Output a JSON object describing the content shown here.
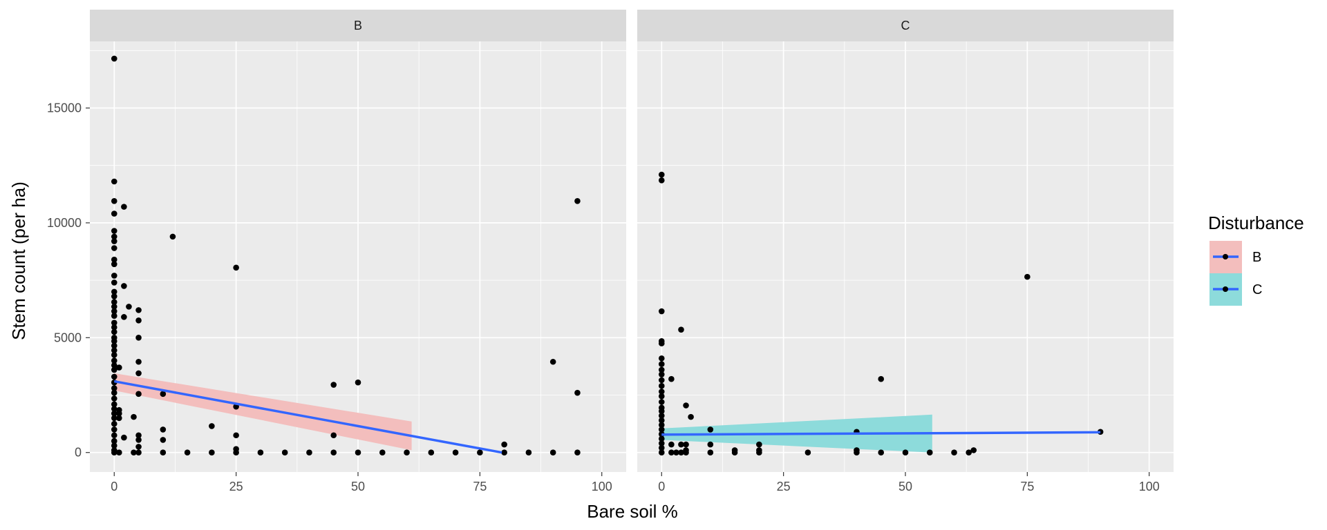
{
  "chart_data": {
    "type": "scatter",
    "xlabel": "Bare soil %",
    "ylabel": "Stem count (per ha)",
    "xlim": [
      -5,
      105
    ],
    "ylim": [
      -850,
      17900
    ],
    "x_ticks": [
      0,
      25,
      50,
      75,
      100
    ],
    "y_ticks": [
      0,
      5000,
      10000,
      15000
    ],
    "x_tick_labels": [
      "0",
      "25",
      "50",
      "75",
      "100"
    ],
    "y_tick_labels": [
      "0",
      "5000",
      "10000",
      "15000"
    ],
    "grid": true,
    "legend": {
      "title": "Disturbance",
      "placement": "right",
      "entries": [
        {
          "label": "B",
          "fill": "#F3BEBD"
        },
        {
          "label": "C",
          "fill": "#8DDBDB"
        }
      ]
    },
    "colors": {
      "panel_bg": "#EBEBEB",
      "strip_bg": "#D9D9D9",
      "grid": "#FFFFFF",
      "points": "#000000",
      "line": "#3366FF"
    },
    "panels": [
      {
        "strip": "B",
        "ribbon_fill": "#F3BEBD",
        "points": [
          [
            0,
            17150
          ],
          [
            0,
            11800
          ],
          [
            0,
            10950
          ],
          [
            0,
            10400
          ],
          [
            0,
            9650
          ],
          [
            0,
            9400
          ],
          [
            0,
            9200
          ],
          [
            0,
            8900
          ],
          [
            0,
            8400
          ],
          [
            0,
            8200
          ],
          [
            0,
            7700
          ],
          [
            0,
            7400
          ],
          [
            0,
            7000
          ],
          [
            0,
            6800
          ],
          [
            0,
            6550
          ],
          [
            0,
            6350
          ],
          [
            0,
            6150
          ],
          [
            0,
            5950
          ],
          [
            0,
            5650
          ],
          [
            0,
            5450
          ],
          [
            0,
            5250
          ],
          [
            0,
            5000
          ],
          [
            0,
            4850
          ],
          [
            0,
            4650
          ],
          [
            0,
            4450
          ],
          [
            0,
            4250
          ],
          [
            0,
            4000
          ],
          [
            0,
            3800
          ],
          [
            0,
            3600
          ],
          [
            0,
            3300
          ],
          [
            0,
            3050
          ],
          [
            0,
            2800
          ],
          [
            0,
            2600
          ],
          [
            0,
            2350
          ],
          [
            0,
            2100
          ],
          [
            0,
            1900
          ],
          [
            0,
            1700
          ],
          [
            0,
            1500
          ],
          [
            0,
            1250
          ],
          [
            0,
            1000
          ],
          [
            0,
            750
          ],
          [
            0,
            500
          ],
          [
            0,
            300
          ],
          [
            0,
            100
          ],
          [
            0,
            0
          ],
          [
            1,
            3700
          ],
          [
            1,
            1850
          ],
          [
            1,
            1700
          ],
          [
            1,
            1500
          ],
          [
            1,
            0
          ],
          [
            2,
            10700
          ],
          [
            2,
            7250
          ],
          [
            2,
            5900
          ],
          [
            2,
            650
          ],
          [
            3,
            6350
          ],
          [
            4,
            1550
          ],
          [
            4,
            0
          ],
          [
            5,
            6200
          ],
          [
            5,
            5750
          ],
          [
            5,
            5000
          ],
          [
            5,
            3950
          ],
          [
            5,
            3450
          ],
          [
            5,
            2550
          ],
          [
            5,
            750
          ],
          [
            5,
            550
          ],
          [
            5,
            250
          ],
          [
            5,
            0
          ],
          [
            10,
            2550
          ],
          [
            10,
            1000
          ],
          [
            10,
            550
          ],
          [
            10,
            0
          ],
          [
            12,
            9400
          ],
          [
            15,
            0
          ],
          [
            20,
            1150
          ],
          [
            20,
            0
          ],
          [
            25,
            8050
          ],
          [
            25,
            2000
          ],
          [
            25,
            750
          ],
          [
            25,
            150
          ],
          [
            25,
            0
          ],
          [
            30,
            0
          ],
          [
            35,
            0
          ],
          [
            40,
            0
          ],
          [
            45,
            2950
          ],
          [
            45,
            750
          ],
          [
            45,
            0
          ],
          [
            50,
            3050
          ],
          [
            50,
            0
          ],
          [
            55,
            0
          ],
          [
            60,
            0
          ],
          [
            65,
            0
          ],
          [
            70,
            0
          ],
          [
            75,
            0
          ],
          [
            80,
            350
          ],
          [
            80,
            0
          ],
          [
            85,
            0
          ],
          [
            90,
            3950
          ],
          [
            90,
            0
          ],
          [
            95,
            10950
          ],
          [
            95,
            2600
          ],
          [
            95,
            0
          ]
        ],
        "line": {
          "x_start": 0,
          "y_start": 3100,
          "x_end": 79.5,
          "y_end": 0
        },
        "ribbon": {
          "x_start": 0,
          "x_end": 61,
          "upper": [
            3450,
            1350
          ],
          "lower": [
            2700,
            100
          ]
        }
      },
      {
        "strip": "C",
        "ribbon_fill": "#8DDBDB",
        "points": [
          [
            0,
            12100
          ],
          [
            0,
            11850
          ],
          [
            0,
            6150
          ],
          [
            0,
            4850
          ],
          [
            0,
            4750
          ],
          [
            0,
            4100
          ],
          [
            0,
            3850
          ],
          [
            0,
            3600
          ],
          [
            0,
            3400
          ],
          [
            0,
            3150
          ],
          [
            0,
            2900
          ],
          [
            0,
            2650
          ],
          [
            0,
            2450
          ],
          [
            0,
            2200
          ],
          [
            0,
            1950
          ],
          [
            0,
            1800
          ],
          [
            0,
            1600
          ],
          [
            0,
            1400
          ],
          [
            0,
            1200
          ],
          [
            0,
            1000
          ],
          [
            0,
            800
          ],
          [
            0,
            600
          ],
          [
            0,
            400
          ],
          [
            0,
            200
          ],
          [
            0,
            0
          ],
          [
            2,
            3200
          ],
          [
            2,
            350
          ],
          [
            2,
            0
          ],
          [
            3,
            0
          ],
          [
            4,
            5350
          ],
          [
            4,
            350
          ],
          [
            4,
            0
          ],
          [
            5,
            2050
          ],
          [
            5,
            350
          ],
          [
            5,
            100
          ],
          [
            5,
            0
          ],
          [
            6,
            1550
          ],
          [
            10,
            1000
          ],
          [
            10,
            350
          ],
          [
            10,
            0
          ],
          [
            15,
            100
          ],
          [
            15,
            0
          ],
          [
            20,
            350
          ],
          [
            20,
            100
          ],
          [
            20,
            0
          ],
          [
            30,
            0
          ],
          [
            40,
            900
          ],
          [
            40,
            100
          ],
          [
            40,
            0
          ],
          [
            45,
            3200
          ],
          [
            45,
            0
          ],
          [
            50,
            0
          ],
          [
            55,
            0
          ],
          [
            60,
            0
          ],
          [
            63,
            0
          ],
          [
            64,
            100
          ],
          [
            75,
            7650
          ],
          [
            90,
            900
          ]
        ],
        "line": {
          "x_start": 0,
          "y_start": 780,
          "x_end": 90,
          "y_end": 880
        },
        "ribbon": {
          "x_start": 0,
          "x_end": 55.5,
          "upper": [
            1050,
            1650
          ],
          "lower": [
            550,
            0
          ]
        }
      }
    ]
  }
}
